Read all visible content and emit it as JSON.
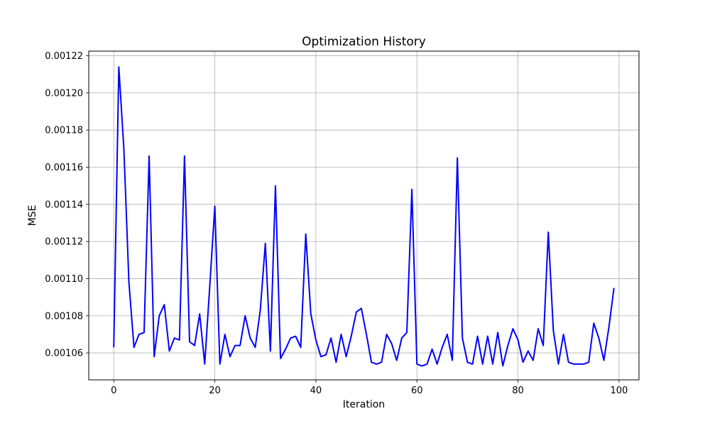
{
  "chart_data": {
    "type": "line",
    "title": "Optimization History",
    "xlabel": "Iteration",
    "ylabel": "MSE",
    "xlim": [
      -4.95,
      103.95
    ],
    "ylim": [
      0.0010455,
      0.0012225
    ],
    "xticks": [
      0,
      20,
      40,
      60,
      80,
      100
    ],
    "xtick_labels": [
      "0",
      "20",
      "40",
      "60",
      "80",
      "100"
    ],
    "yticks": [
      0.00106,
      0.00108,
      0.0011,
      0.00112,
      0.00114,
      0.00116,
      0.00118,
      0.0012,
      0.00122
    ],
    "ytick_labels": [
      "0.00106",
      "0.00108",
      "0.00110",
      "0.00112",
      "0.00114",
      "0.00116",
      "0.00118",
      "0.00120",
      "0.00122"
    ],
    "grid": true,
    "series": [
      {
        "color": "#0000ff",
        "x": [
          0,
          1,
          2,
          3,
          4,
          5,
          6,
          7,
          8,
          9,
          10,
          11,
          12,
          13,
          14,
          15,
          16,
          17,
          18,
          19,
          20,
          21,
          22,
          23,
          24,
          25,
          26,
          27,
          28,
          29,
          30,
          31,
          32,
          33,
          34,
          35,
          36,
          37,
          38,
          39,
          40,
          41,
          42,
          43,
          44,
          45,
          46,
          47,
          48,
          49,
          50,
          51,
          52,
          53,
          54,
          55,
          56,
          57,
          58,
          59,
          60,
          61,
          62,
          63,
          64,
          65,
          66,
          67,
          68,
          69,
          70,
          71,
          72,
          73,
          74,
          75,
          76,
          77,
          78,
          79,
          80,
          81,
          82,
          83,
          84,
          85,
          86,
          87,
          88,
          89,
          90,
          91,
          92,
          93,
          94,
          95,
          96,
          97,
          98,
          99
        ],
        "y": [
          0.001063,
          0.001214,
          0.00117,
          0.001098,
          0.001063,
          0.00107,
          0.001071,
          0.001166,
          0.001058,
          0.00108,
          0.001086,
          0.001061,
          0.001068,
          0.001067,
          0.001166,
          0.001066,
          0.001064,
          0.001081,
          0.001054,
          0.001096,
          0.001139,
          0.001054,
          0.00107,
          0.001058,
          0.001064,
          0.001064,
          0.00108,
          0.001068,
          0.001063,
          0.001083,
          0.001119,
          0.001061,
          0.00115,
          0.001057,
          0.001062,
          0.001068,
          0.001069,
          0.001063,
          0.001124,
          0.001081,
          0.001067,
          0.001058,
          0.001059,
          0.001068,
          0.001055,
          0.00107,
          0.001058,
          0.001069,
          0.001082,
          0.001084,
          0.00107,
          0.001055,
          0.001054,
          0.001055,
          0.00107,
          0.001065,
          0.001056,
          0.001068,
          0.001071,
          0.001148,
          0.001054,
          0.001053,
          0.001054,
          0.001062,
          0.001054,
          0.001063,
          0.00107,
          0.001056,
          0.001165,
          0.001068,
          0.001055,
          0.001054,
          0.001069,
          0.001054,
          0.001069,
          0.001054,
          0.001071,
          0.001053,
          0.001064,
          0.001073,
          0.001067,
          0.001055,
          0.001061,
          0.001056,
          0.001073,
          0.001064,
          0.001125,
          0.001072,
          0.001054,
          0.00107,
          0.001055,
          0.001054,
          0.001054,
          0.001054,
          0.001055,
          0.001076,
          0.001068,
          0.001056,
          0.001074,
          0.001095
        ]
      }
    ]
  }
}
